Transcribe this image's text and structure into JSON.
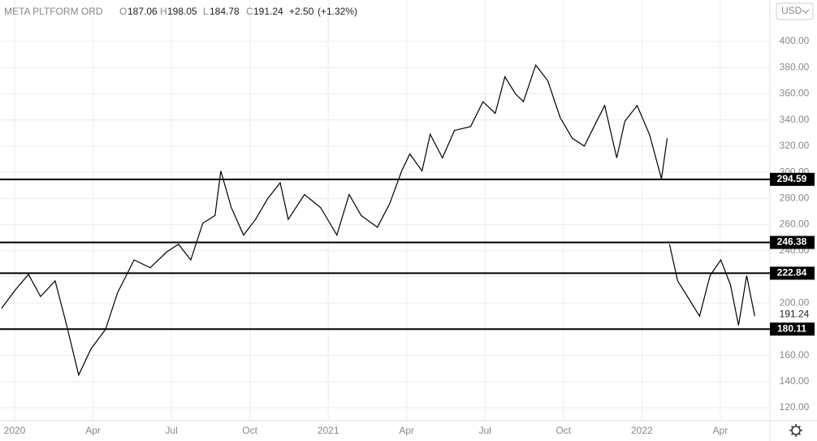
{
  "chart_data": {
    "type": "line",
    "header": {
      "name": "META PLTFORM ORD",
      "open_label": "O",
      "open": 187.06,
      "high_label": "H",
      "high": 198.05,
      "low_label": "L",
      "low": 184.78,
      "close_label": "C",
      "close": 191.24,
      "change": "+2.50",
      "change_pct": "(+1.32%)"
    },
    "currency": "USD",
    "x": [
      -0.5,
      0.06,
      0.53,
      0.99,
      1.55,
      1.99,
      2.45,
      2.92,
      3.48,
      3.94,
      4.57,
      5.19,
      5.81,
      6.27,
      6.74,
      7.2,
      7.67,
      7.89,
      8.29,
      8.76,
      9.22,
      9.69,
      10.16,
      10.47,
      11.09,
      11.71,
      12.33,
      12.8,
      13.26,
      13.88,
      14.35,
      14.81,
      15.12,
      15.59,
      15.9,
      16.37,
      16.83,
      17.45,
      17.92,
      18.39,
      18.76,
      19.16,
      19.47,
      19.94,
      20.4,
      20.87,
      21.34,
      21.8,
      22.27,
      22.58,
      23.04,
      23.35,
      23.82,
      24.29,
      24.75,
      24.97,
      25.0,
      25.06,
      25.37,
      25.84,
      26.21,
      26.61,
      27.02,
      27.39,
      27.7,
      28.01,
      28.32
    ],
    "values": [
      196,
      211,
      222,
      205,
      217,
      183,
      145,
      165,
      180,
      208,
      233,
      227,
      239,
      245,
      233,
      261,
      267,
      301,
      273,
      252,
      264,
      280,
      292,
      264,
      283,
      273,
      252,
      283,
      267,
      258,
      276,
      301,
      314,
      301,
      329,
      311,
      332,
      335,
      354,
      345,
      373,
      360,
      354,
      382,
      370,
      342,
      326,
      320,
      339,
      351,
      311,
      339,
      351,
      329,
      295,
      326,
      null,
      245,
      217,
      202,
      190,
      221,
      233,
      214,
      183,
      221,
      190
    ],
    "color": "#000000",
    "levels": [
      294.59,
      246.38,
      222.84,
      180.11
    ],
    "xlim": [
      -0.56,
      28.9
    ],
    "xticks": [
      {
        "value": 0,
        "label": "2020"
      },
      {
        "value": 3,
        "label": "Apr"
      },
      {
        "value": 6,
        "label": "Jul"
      },
      {
        "value": 9,
        "label": "Oct"
      },
      {
        "value": 12,
        "label": "2021"
      },
      {
        "value": 15,
        "label": "Apr"
      },
      {
        "value": 18,
        "label": "Jul"
      },
      {
        "value": 21,
        "label": "Oct"
      },
      {
        "value": 24,
        "label": "2022"
      },
      {
        "value": 27,
        "label": "Apr"
      }
    ],
    "ylim": [
      110.1,
      431.7
    ],
    "yticks": [
      {
        "value": 120,
        "label": "120.00"
      },
      {
        "value": 140,
        "label": "140.00"
      },
      {
        "value": 160,
        "label": "160.00"
      },
      {
        "value": 180,
        "label": "180.00"
      },
      {
        "value": 200,
        "label": "200.00"
      },
      {
        "value": 220,
        "label": "220.00"
      },
      {
        "value": 240,
        "label": "240.00"
      },
      {
        "value": 260,
        "label": "260.00"
      },
      {
        "value": 280,
        "label": "280.00"
      },
      {
        "value": 300,
        "label": "300.00"
      },
      {
        "value": 320,
        "label": "320.00"
      },
      {
        "value": 340,
        "label": "340.00"
      },
      {
        "value": 360,
        "label": "360.00"
      },
      {
        "value": 380,
        "label": "380.00"
      },
      {
        "value": 400,
        "label": "400.00"
      }
    ],
    "grid": true
  }
}
